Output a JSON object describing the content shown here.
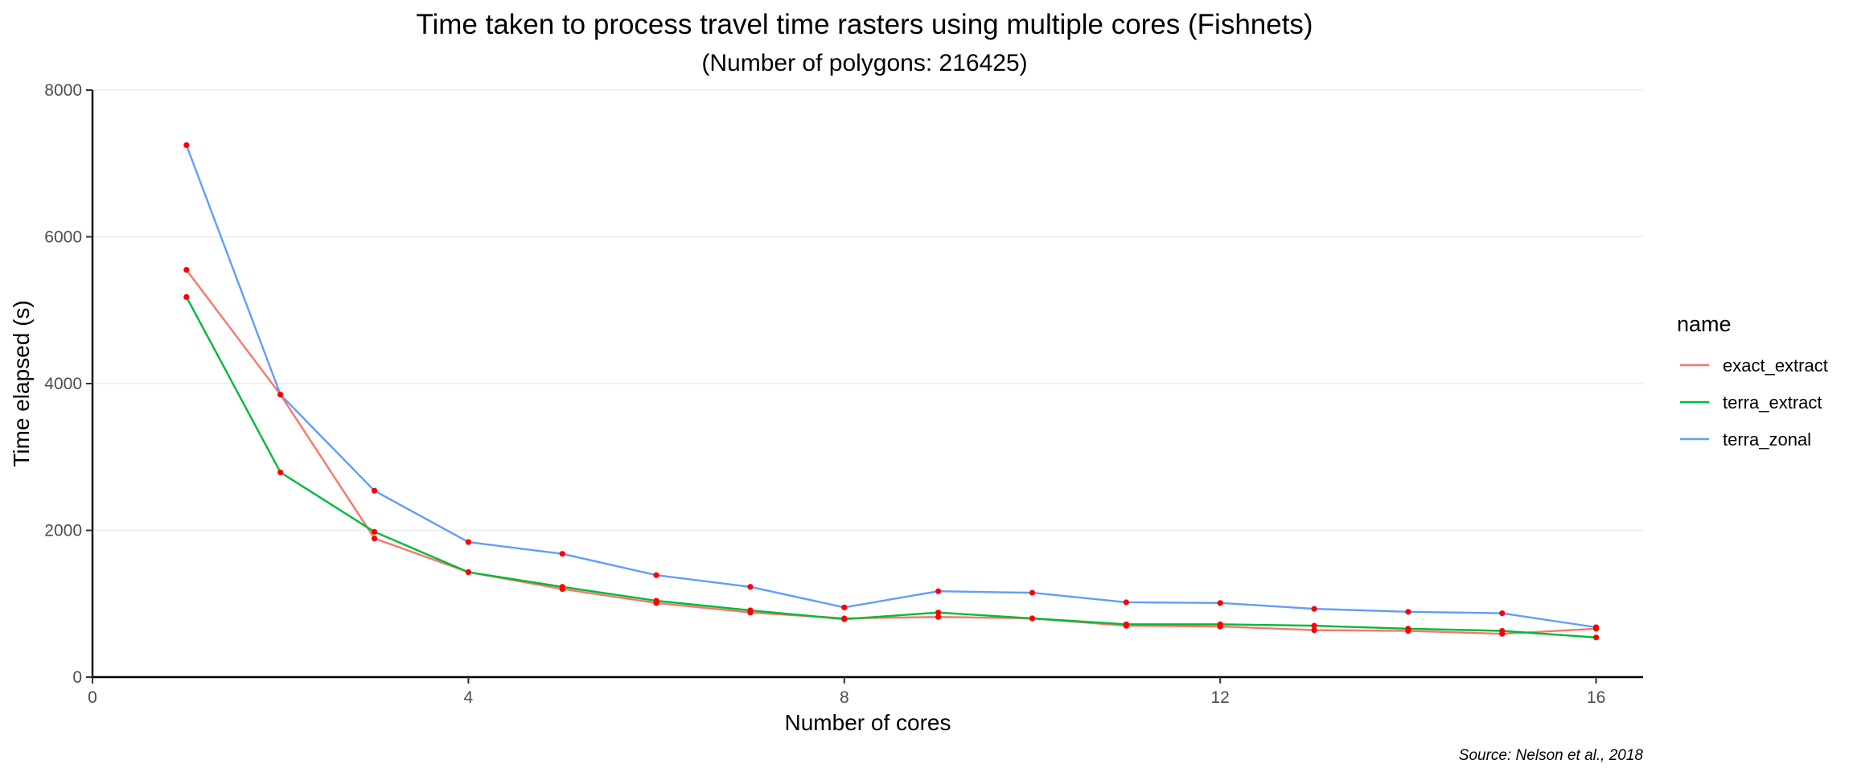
{
  "chart_data": {
    "type": "line",
    "title": "Time taken to process travel time rasters using multiple cores (Fishnets)",
    "subtitle": "(Number of polygons: 216425)",
    "xlabel": "Number of cores",
    "ylabel": "Time elapsed (s)",
    "caption": "Source: Nelson et al., 2018",
    "xlim": [
      0,
      16.5
    ],
    "ylim": [
      0,
      8000
    ],
    "xticks": [
      0,
      4,
      8,
      12,
      16
    ],
    "yticks": [
      0,
      2000,
      4000,
      6000,
      8000
    ],
    "grid": true,
    "legend": {
      "title": "name",
      "position": "right"
    },
    "point_color": "#ff0000",
    "x": [
      1,
      2,
      3,
      4,
      5,
      6,
      7,
      8,
      9,
      10,
      11,
      12,
      13,
      14,
      15,
      16
    ],
    "series": [
      {
        "name": "exact_extract",
        "color": "#f8766d",
        "values": [
          5550,
          3850,
          1890,
          1430,
          1200,
          1010,
          880,
          800,
          820,
          800,
          700,
          690,
          640,
          630,
          590,
          660
        ]
      },
      {
        "name": "terra_extract",
        "color": "#00ba38",
        "values": [
          5180,
          2790,
          1980,
          1430,
          1230,
          1040,
          910,
          790,
          880,
          800,
          720,
          720,
          700,
          660,
          630,
          540
        ]
      },
      {
        "name": "terra_zonal",
        "color": "#619cff",
        "values": [
          7250,
          3850,
          2540,
          1840,
          1680,
          1390,
          1230,
          950,
          1170,
          1150,
          1020,
          1010,
          930,
          890,
          870,
          680
        ]
      }
    ]
  }
}
